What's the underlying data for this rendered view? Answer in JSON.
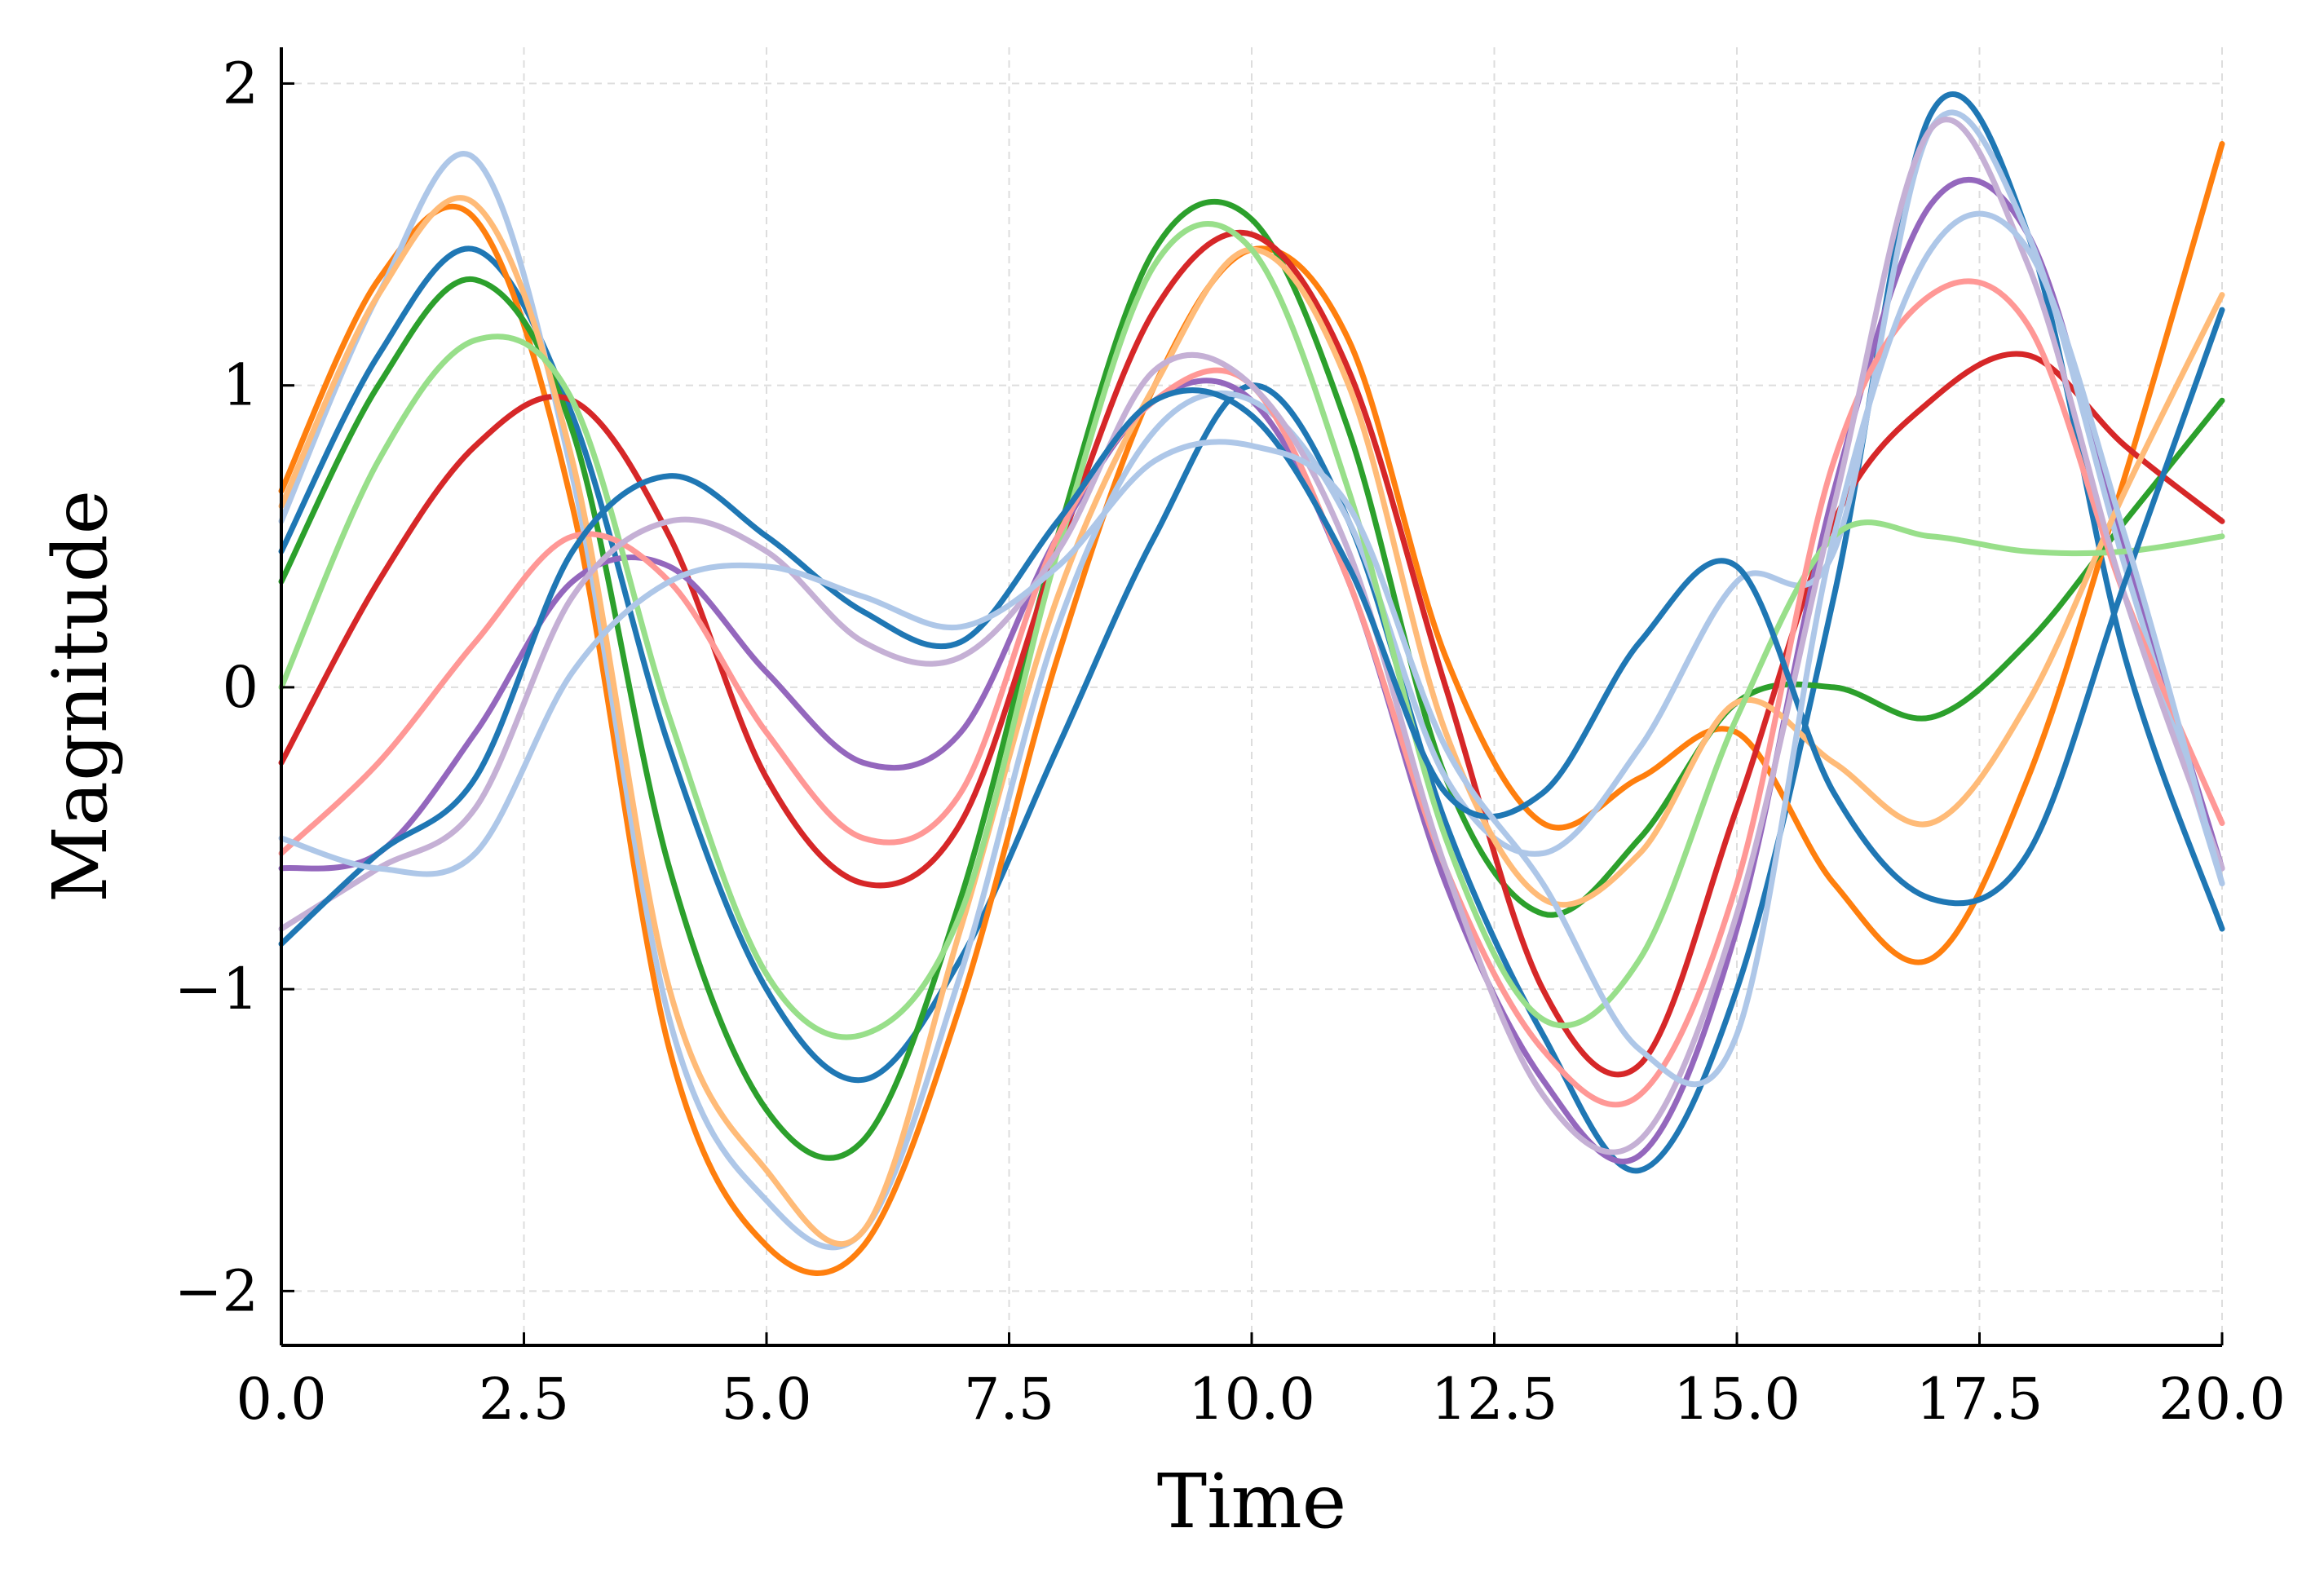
{
  "chart_data": {
    "type": "line",
    "title": "",
    "xlabel": "Time",
    "ylabel": "Magnitude",
    "xlim": [
      0,
      20
    ],
    "ylim": [
      -2.18,
      2.12
    ],
    "xticks": [
      0,
      2.5,
      5,
      7.5,
      10,
      12.5,
      15,
      17.5,
      20
    ],
    "xtick_labels": [
      "0.0",
      "2.5",
      "5.0",
      "7.5",
      "10.0",
      "12.5",
      "15.0",
      "17.5",
      "20.0"
    ],
    "yticks": [
      -2,
      -1,
      0,
      1,
      2
    ],
    "ytick_labels": [
      "−2",
      "−1",
      "0",
      "1",
      "2"
    ],
    "grid": true,
    "legend": "none",
    "x": [
      0,
      1,
      2,
      3,
      4,
      5,
      6,
      7,
      8,
      9,
      10,
      11,
      12,
      13,
      14,
      15,
      16,
      17,
      18,
      19,
      20
    ],
    "series": [
      {
        "name": "series-1",
        "color": "#1f77b4",
        "values": [
          0.45,
          1.1,
          1.45,
          0.9,
          -0.2,
          -1.0,
          -1.3,
          -0.9,
          -0.2,
          0.5,
          1.0,
          0.55,
          -0.45,
          -1.15,
          -1.6,
          -1.0,
          0.3,
          1.9,
          1.5,
          0.1,
          -0.8
        ]
      },
      {
        "name": "series-2",
        "color": "#ff7f0e",
        "values": [
          0.65,
          1.35,
          1.55,
          0.6,
          -1.2,
          -1.85,
          -1.85,
          -1.05,
          0.1,
          1.0,
          1.45,
          1.15,
          0.1,
          -0.45,
          -0.3,
          -0.15,
          -0.65,
          -0.9,
          -0.3,
          0.7,
          1.8
        ]
      },
      {
        "name": "series-3",
        "color": "#2ca02c",
        "values": [
          0.35,
          1.0,
          1.35,
          0.85,
          -0.6,
          -1.4,
          -1.5,
          -0.7,
          0.5,
          1.45,
          1.55,
          0.85,
          -0.3,
          -0.75,
          -0.5,
          -0.05,
          0.0,
          -0.1,
          0.15,
          0.55,
          0.95
        ]
      },
      {
        "name": "series-4",
        "color": "#d62728",
        "values": [
          -0.25,
          0.35,
          0.8,
          0.95,
          0.5,
          -0.3,
          -0.65,
          -0.45,
          0.45,
          1.25,
          1.5,
          1.05,
          0.0,
          -1.0,
          -1.25,
          -0.4,
          0.55,
          0.95,
          1.1,
          0.8,
          0.55
        ]
      },
      {
        "name": "series-5",
        "color": "#9467bd",
        "values": [
          -0.6,
          -0.55,
          -0.15,
          0.35,
          0.4,
          0.05,
          -0.25,
          -0.15,
          0.5,
          0.95,
          0.95,
          0.35,
          -0.65,
          -1.3,
          -1.55,
          -0.8,
          0.65,
          1.6,
          1.5,
          0.45,
          -0.6
        ]
      },
      {
        "name": "series-6",
        "color": "#aec7e8",
        "values": [
          0.55,
          1.3,
          1.75,
          0.7,
          -1.1,
          -1.7,
          -1.8,
          -0.95,
          0.2,
          0.85,
          0.95,
          0.55,
          -0.3,
          -0.55,
          -0.2,
          0.35,
          0.45,
          1.85,
          1.5,
          0.4,
          -0.65
        ]
      },
      {
        "name": "series-7",
        "color": "#ffbb78",
        "values": [
          0.6,
          1.3,
          1.6,
          0.75,
          -1.0,
          -1.6,
          -1.8,
          -0.8,
          0.3,
          1.0,
          1.45,
          1.0,
          -0.15,
          -0.7,
          -0.55,
          -0.05,
          -0.25,
          -0.45,
          -0.05,
          0.65,
          1.3
        ]
      },
      {
        "name": "series-8",
        "color": "#98df8a",
        "values": [
          0.0,
          0.75,
          1.15,
          0.95,
          -0.1,
          -0.95,
          -1.15,
          -0.75,
          0.45,
          1.4,
          1.45,
          0.65,
          -0.5,
          -1.1,
          -0.9,
          -0.1,
          0.5,
          0.5,
          0.45,
          0.45,
          0.5
        ]
      },
      {
        "name": "series-9",
        "color": "#ff9896",
        "values": [
          -0.55,
          -0.25,
          0.15,
          0.5,
          0.35,
          -0.15,
          -0.5,
          -0.35,
          0.5,
          0.95,
          1.0,
          0.35,
          -0.6,
          -1.2,
          -1.35,
          -0.65,
          0.75,
          1.3,
          1.2,
          0.3,
          -0.45
        ]
      },
      {
        "name": "series-10",
        "color": "#c5b0d5",
        "values": [
          -0.8,
          -0.6,
          -0.4,
          0.3,
          0.55,
          0.45,
          0.15,
          0.1,
          0.45,
          1.05,
          1.0,
          0.45,
          -0.6,
          -1.35,
          -1.5,
          -0.75,
          0.6,
          1.85,
          1.4,
          0.3,
          -0.6
        ]
      },
      {
        "name": "series-11",
        "color": "#1f77b4",
        "values": [
          -0.85,
          -0.55,
          -0.3,
          0.45,
          0.7,
          0.5,
          0.25,
          0.15,
          0.55,
          0.95,
          0.9,
          0.4,
          -0.35,
          -0.35,
          0.15,
          0.4,
          -0.35,
          -0.7,
          -0.55,
          0.35,
          1.25
        ]
      },
      {
        "name": "series-12",
        "color": "#aec7e8",
        "values": [
          -0.5,
          -0.6,
          -0.55,
          0.05,
          0.35,
          0.4,
          0.3,
          0.2,
          0.4,
          0.75,
          0.8,
          0.6,
          -0.2,
          -0.65,
          -1.2,
          -1.15,
          0.5,
          1.45,
          1.45,
          0.5,
          -0.65
        ]
      }
    ]
  }
}
